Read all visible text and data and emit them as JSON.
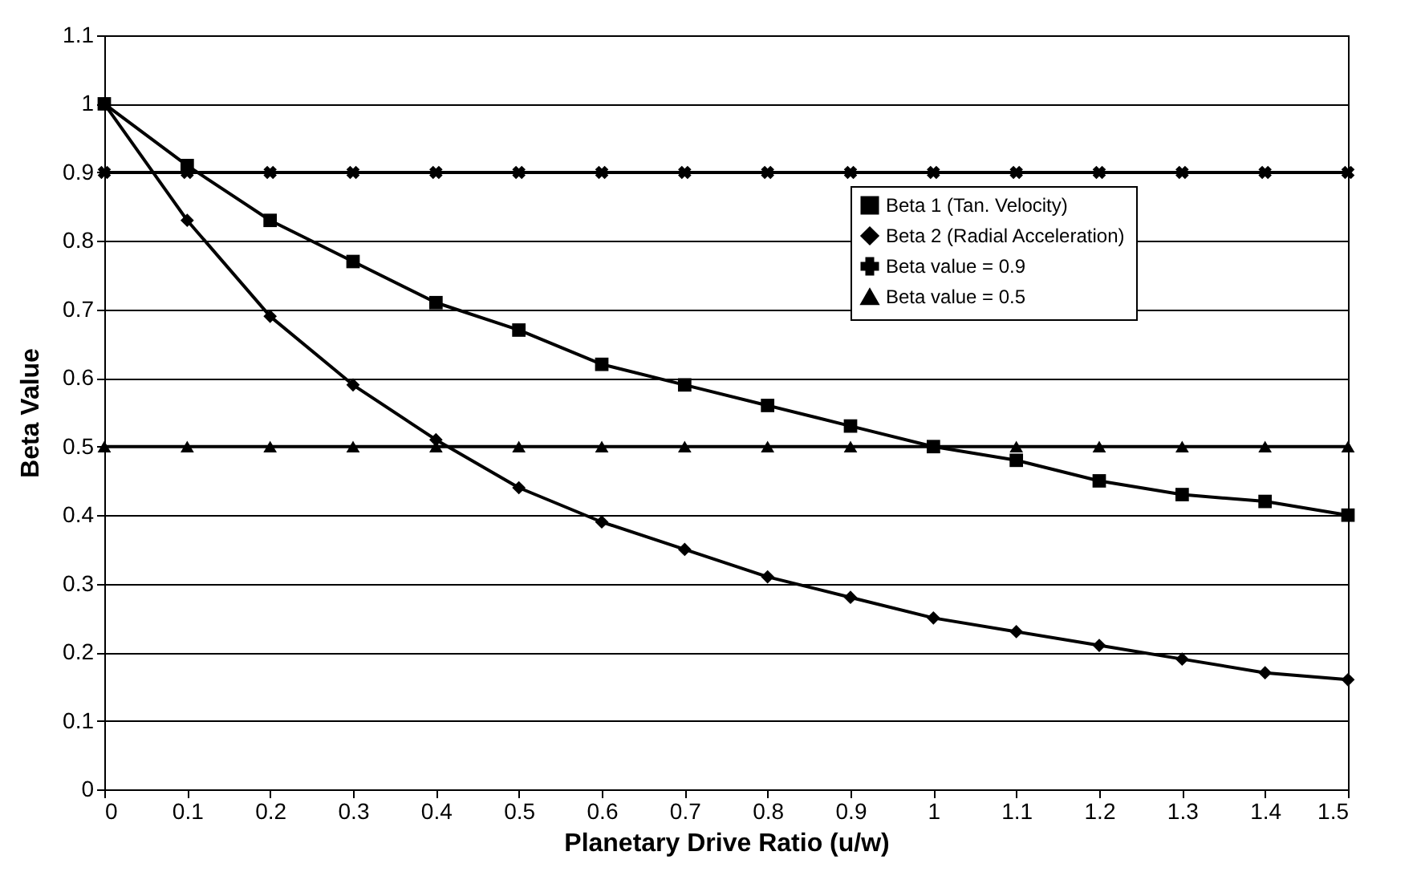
{
  "chart_data": {
    "type": "line",
    "xlabel": "Planetary Drive Ratio (u/w)",
    "ylabel": "Beta Value",
    "x": [
      0,
      0.1,
      0.2,
      0.3,
      0.4,
      0.5,
      0.6,
      0.7,
      0.8,
      0.9,
      1,
      1.1,
      1.2,
      1.3,
      1.4,
      1.5
    ],
    "series": [
      {
        "name": "Beta 1 (Tan. Velocity)",
        "color": "#000000",
        "marker": "square",
        "values": [
          1,
          0.91,
          0.83,
          0.77,
          0.71,
          0.67,
          0.62,
          0.59,
          0.56,
          0.53,
          0.5,
          0.48,
          0.45,
          0.43,
          0.42,
          0.4
        ]
      },
      {
        "name": "Beta 2 (Radial Acceleration)",
        "color": "#000000",
        "marker": "diamond",
        "values": [
          1,
          0.83,
          0.69,
          0.59,
          0.51,
          0.44,
          0.39,
          0.35,
          0.31,
          0.28,
          0.25,
          0.23,
          0.21,
          0.19,
          0.17,
          0.16
        ]
      },
      {
        "name": "Beta value = 0.9",
        "color": "#000000",
        "marker": "cross",
        "values": [
          0.9,
          0.9,
          0.9,
          0.9,
          0.9,
          0.9,
          0.9,
          0.9,
          0.9,
          0.9,
          0.9,
          0.9,
          0.9,
          0.9,
          0.9,
          0.9
        ]
      },
      {
        "name": "Beta value = 0.5",
        "color": "#000000",
        "marker": "triangle",
        "values": [
          0.5,
          0.5,
          0.5,
          0.5,
          0.5,
          0.5,
          0.5,
          0.5,
          0.5,
          0.5,
          0.5,
          0.5,
          0.5,
          0.5,
          0.5,
          0.5
        ]
      }
    ],
    "xlim": [
      0,
      1.5
    ],
    "xticks": [
      0,
      0.1,
      0.2,
      0.3,
      0.4,
      0.5,
      0.6,
      0.7,
      0.8,
      0.9,
      1,
      1.1,
      1.2,
      1.3,
      1.4,
      1.5
    ],
    "ylim": [
      0,
      1.1
    ],
    "yticks": [
      0,
      0.1,
      0.2,
      0.3,
      0.4,
      0.5,
      0.6,
      0.7,
      0.8,
      0.9,
      1,
      1.1
    ],
    "grid": "y",
    "legend": "top right",
    "line_style": "solid"
  }
}
